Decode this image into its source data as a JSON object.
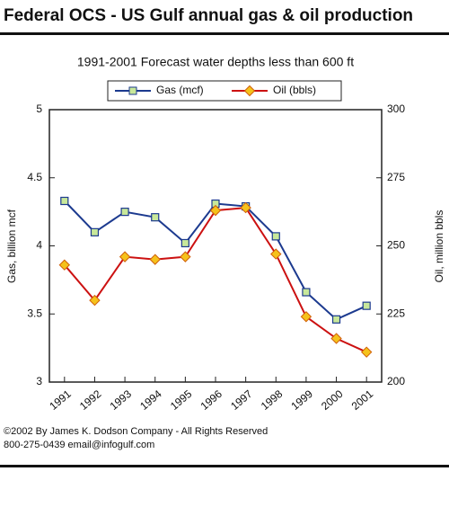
{
  "chart_data": {
    "type": "line",
    "title": "Federal OCS - US Gulf annual gas & oil production",
    "subtitle": "1991-2001 Forecast water depths less than 600 ft",
    "y_label": "Gas, billion mcf",
    "y2_label": "Oil, million bbls",
    "categories": [
      "1991",
      "1992",
      "1993",
      "1994",
      "1995",
      "1996",
      "1997",
      "1998",
      "1999",
      "2000",
      "2001"
    ],
    "series": [
      {
        "name": "Gas (mcf)",
        "color": "#1c3a8f",
        "marker": "#c8e89a",
        "values": [
          4.33,
          4.1,
          4.25,
          4.21,
          4.02,
          4.31,
          4.29,
          4.07,
          3.66,
          3.46,
          3.56
        ]
      },
      {
        "name": "Oil (bbls)",
        "color": "#cc1111",
        "marker": "#f5c21b",
        "axis": "y2",
        "values": [
          243,
          230,
          246,
          245,
          246,
          263,
          264,
          247,
          224,
          216,
          211
        ]
      }
    ],
    "ylim": [
      3,
      5
    ],
    "yticks": [
      3,
      3.5,
      4,
      4.5,
      5
    ],
    "y2lim": [
      200,
      300
    ],
    "y2ticks": [
      200,
      225,
      250,
      275,
      300
    ],
    "grid": false,
    "legend": "top",
    "footer": [
      "©2002 By James K. Dodson Company - All Rights Reserved",
      "800-275-0439  email@infogulf.com"
    ]
  }
}
